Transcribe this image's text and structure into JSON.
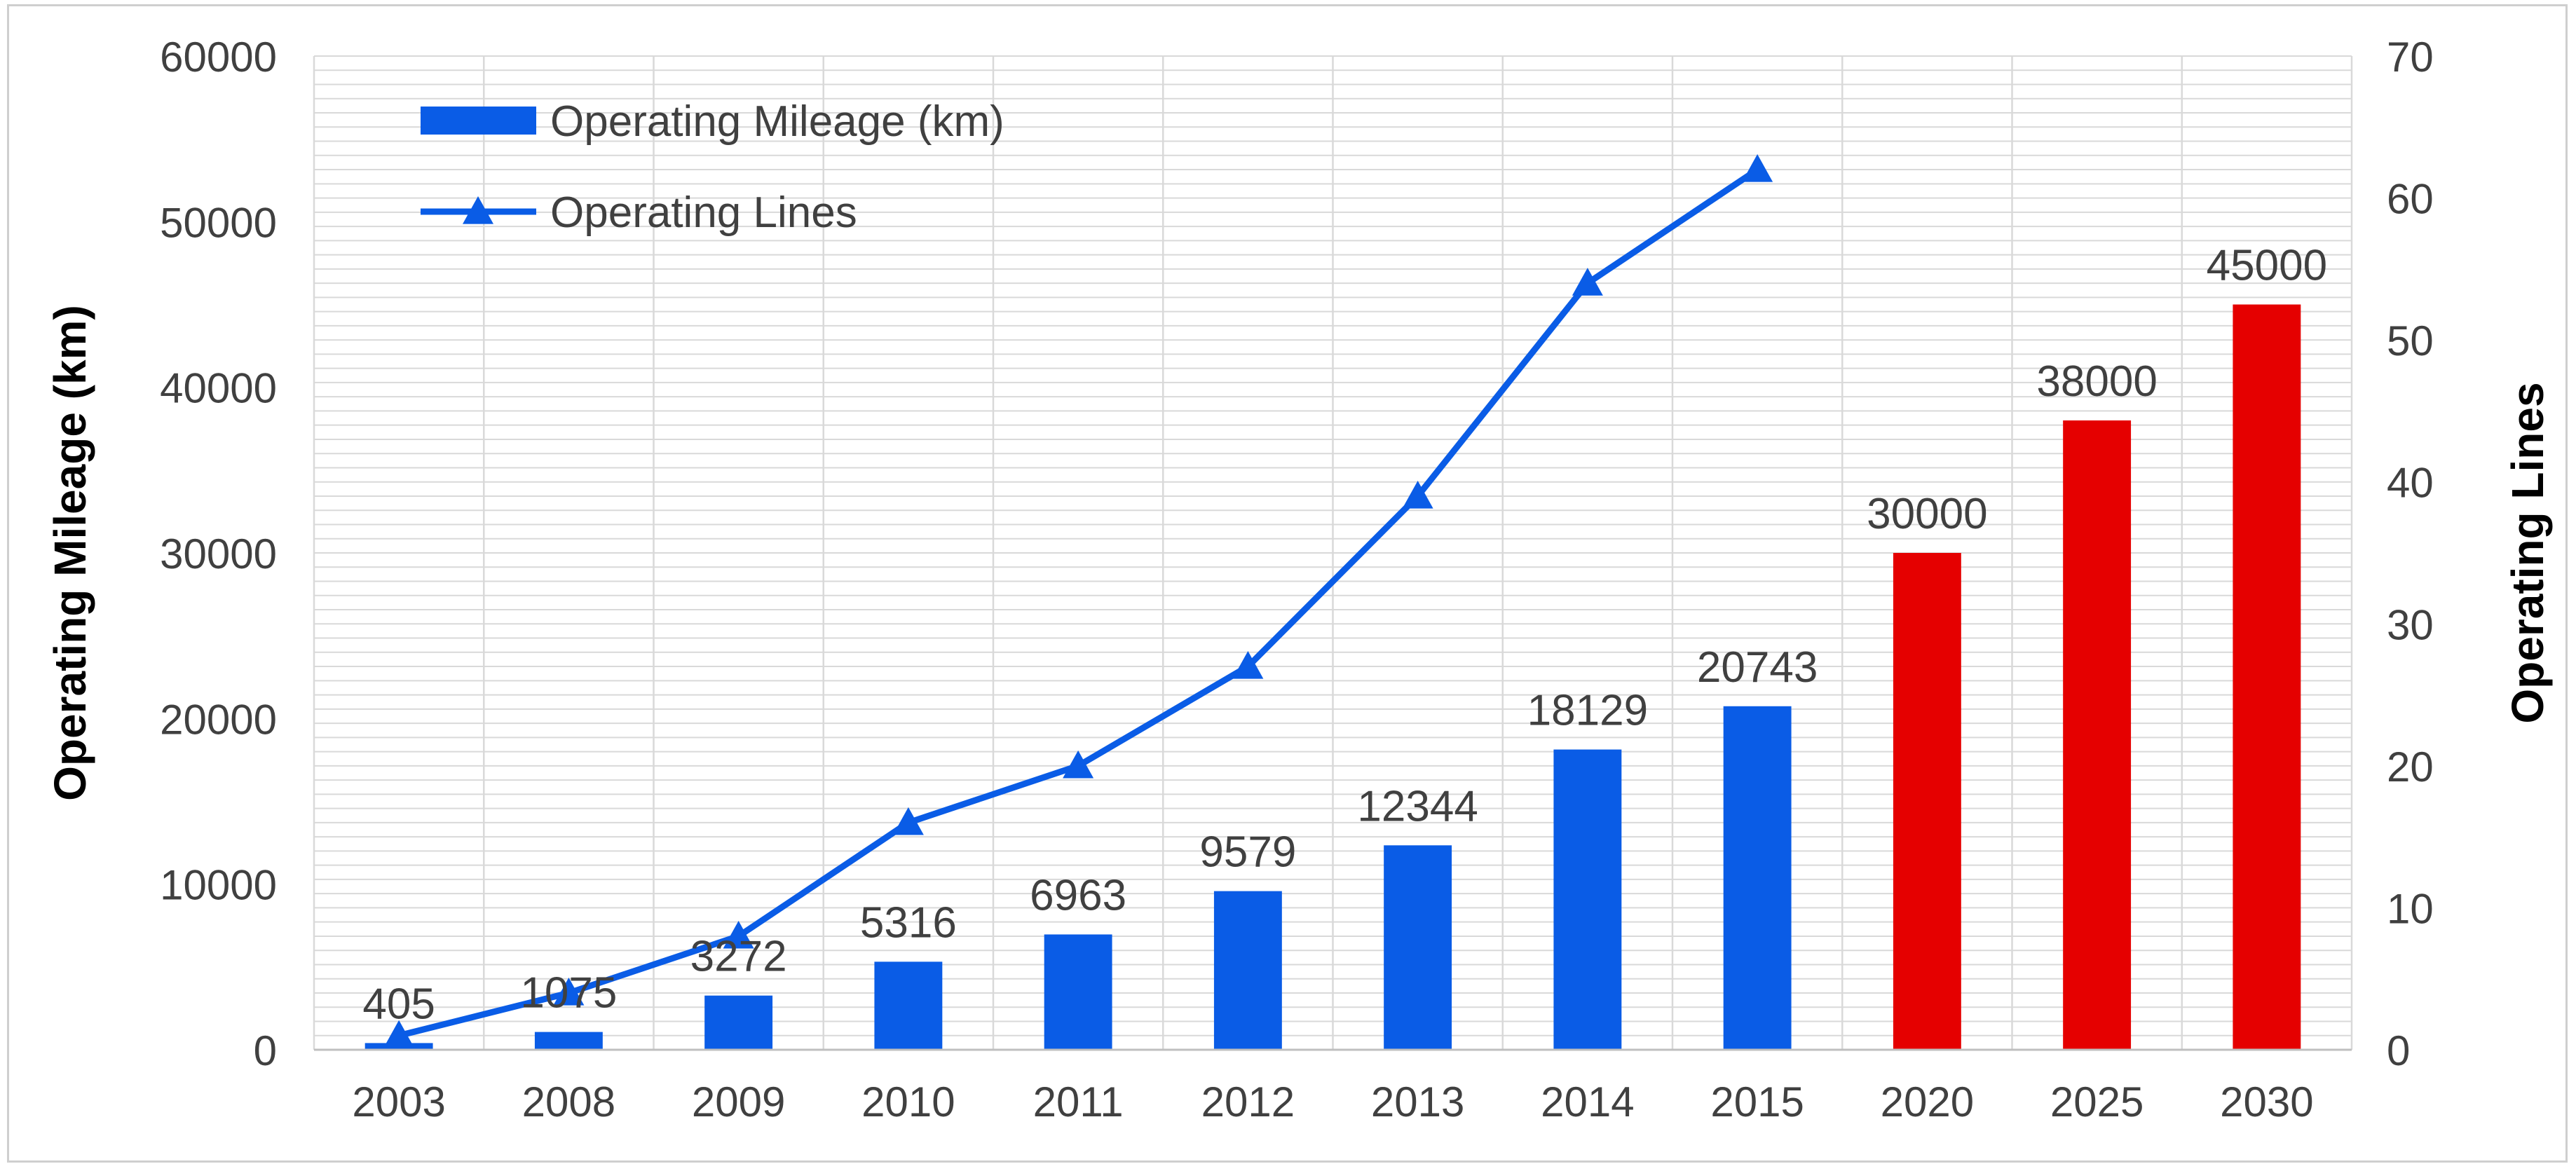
{
  "chart_data": {
    "type": "bar+line",
    "categories": [
      "2003",
      "2008",
      "2009",
      "2010",
      "2011",
      "2012",
      "2013",
      "2014",
      "2015",
      "2020",
      "2025",
      "2030"
    ],
    "series": [
      {
        "name": "Operating Mileage (km)",
        "kind": "bar",
        "axis": "left",
        "values": [
          405,
          1075,
          3272,
          5316,
          6963,
          9579,
          12344,
          18129,
          20743,
          30000,
          38000,
          45000
        ],
        "data_labels": [
          "405",
          "1075",
          "3272",
          "5316",
          "6963",
          "9579",
          "12344",
          "18129",
          "20743",
          "30000",
          "38000",
          "45000"
        ],
        "planned_from_index": 9
      },
      {
        "name": "Operating Lines",
        "kind": "line",
        "axis": "right",
        "marker": "triangle",
        "values": [
          1,
          4,
          8,
          16,
          20,
          27,
          39,
          54,
          62,
          null,
          null,
          null
        ]
      }
    ],
    "y_left": {
      "label": "Operating Mileage (km)",
      "range": [
        0,
        60000
      ],
      "ticks": [
        "0",
        "10000",
        "20000",
        "30000",
        "40000",
        "50000",
        "60000"
      ]
    },
    "y_right": {
      "label": "Operating Lines",
      "range": [
        0,
        70
      ],
      "ticks": [
        "0",
        "10",
        "20",
        "30",
        "40",
        "50",
        "60",
        "70"
      ]
    },
    "colors": {
      "actual": "#0a5ce6",
      "planned": "#e50000",
      "line": "#0a5ce6",
      "grid": "#d9d9d9",
      "text": "#404040"
    },
    "legend": {
      "position": "top-left",
      "items": [
        {
          "label": "Operating Mileage (km)",
          "symbol": "bar-icon"
        },
        {
          "label": "Operating Lines",
          "symbol": "line-triangle-icon"
        }
      ]
    },
    "grid": true
  }
}
